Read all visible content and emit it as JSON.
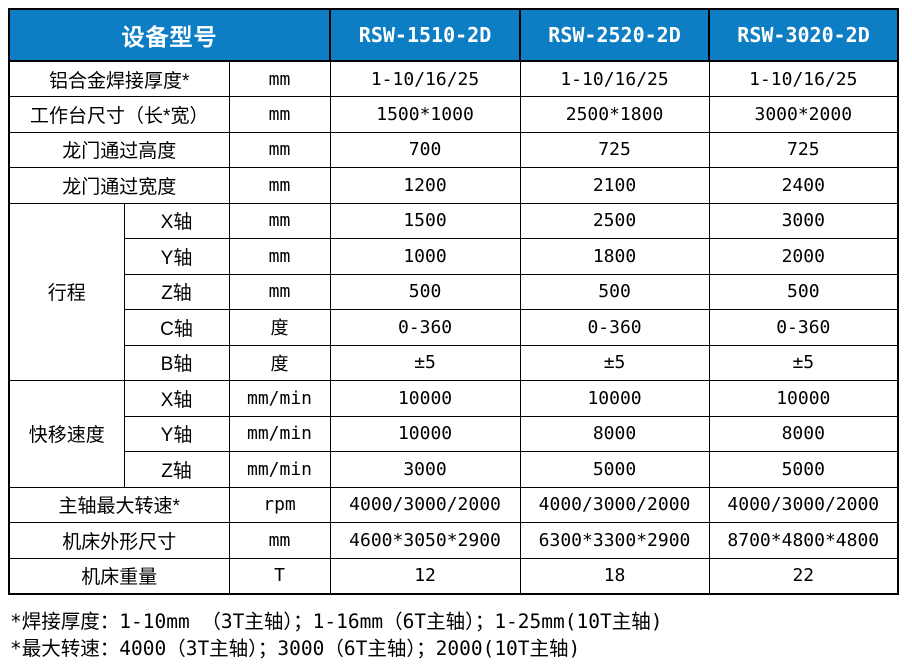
{
  "colors": {
    "header_bg": "#0d7ec3",
    "header_text": "#ffffff",
    "border": "#000000",
    "body_text": "#000000"
  },
  "header": {
    "device_model_label": "设备型号",
    "models": [
      "RSW-1510-2D",
      "RSW-2520-2D",
      "RSW-3020-2D"
    ]
  },
  "rows": [
    {
      "label": "铝合金焊接厚度*",
      "unit": "mm",
      "values": [
        "1-10/16/25",
        "1-10/16/25",
        "1-10/16/25"
      ]
    },
    {
      "label": "工作台尺寸（长*宽）",
      "unit": "mm",
      "values": [
        "1500*1000",
        "2500*1800",
        "3000*2000"
      ]
    },
    {
      "label": "龙门通过高度",
      "unit": "mm",
      "values": [
        "700",
        "725",
        "725"
      ]
    },
    {
      "label": "龙门通过宽度",
      "unit": "mm",
      "values": [
        "1200",
        "2100",
        "2400"
      ]
    },
    {
      "group": "行程",
      "label": "X轴",
      "unit": "mm",
      "values": [
        "1500",
        "2500",
        "3000"
      ]
    },
    {
      "label": "Y轴",
      "unit": "mm",
      "values": [
        "1000",
        "1800",
        "2000"
      ]
    },
    {
      "label": "Z轴",
      "unit": "mm",
      "values": [
        "500",
        "500",
        "500"
      ]
    },
    {
      "label": "C轴",
      "unit": "度",
      "values": [
        "0-360",
        "0-360",
        "0-360"
      ]
    },
    {
      "label": "B轴",
      "unit": "度",
      "values": [
        "±5",
        "±5",
        "±5"
      ]
    },
    {
      "group": "快移速度",
      "label": "X轴",
      "unit": "mm/min",
      "values": [
        "10000",
        "10000",
        "10000"
      ]
    },
    {
      "label": "Y轴",
      "unit": "mm/min",
      "values": [
        "10000",
        "8000",
        "8000"
      ]
    },
    {
      "label": "Z轴",
      "unit": "mm/min",
      "values": [
        "3000",
        "5000",
        "5000"
      ]
    },
    {
      "label": "主轴最大转速*",
      "unit": "rpm",
      "values": [
        "4000/3000/2000",
        "4000/3000/2000",
        "4000/3000/2000"
      ]
    },
    {
      "label": "机床外形尺寸",
      "unit": "mm",
      "values": [
        "4600*3050*2900",
        "6300*3300*2900",
        "8700*4800*4800"
      ]
    },
    {
      "label": "机床重量",
      "unit": "T",
      "values": [
        "12",
        "18",
        "22"
      ]
    }
  ],
  "footnotes": [
    "*焊接厚度：1-10mm （3T主轴）；1-16mm（6T主轴）；1-25mm(10T主轴)",
    "*最大转速：4000（3T主轴）；3000（6T主轴）；2000(10T主轴)"
  ]
}
